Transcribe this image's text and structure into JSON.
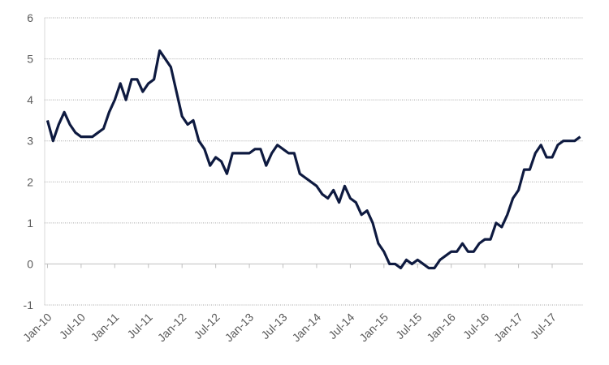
{
  "chart_data": {
    "type": "line",
    "categories": [
      "Jan-10",
      null,
      null,
      null,
      null,
      null,
      "Jul-10",
      null,
      null,
      null,
      null,
      null,
      "Jan-11",
      null,
      null,
      null,
      null,
      null,
      "Jul-11",
      null,
      null,
      null,
      null,
      null,
      "Jan-12",
      null,
      null,
      null,
      null,
      null,
      "Jul-12",
      null,
      null,
      null,
      null,
      null,
      "Jan-13",
      null,
      null,
      null,
      null,
      null,
      "Jul-13",
      null,
      null,
      null,
      null,
      null,
      "Jan-14",
      null,
      null,
      null,
      null,
      null,
      "Jul-14",
      null,
      null,
      null,
      null,
      null,
      "Jan-15",
      null,
      null,
      null,
      null,
      null,
      "Jul-15",
      null,
      null,
      null,
      null,
      null,
      "Jan-16",
      null,
      null,
      null,
      null,
      null,
      "Jul-16",
      null,
      null,
      null,
      null,
      null,
      "Jan-17",
      null,
      null,
      null,
      null,
      null,
      "Jul-17",
      null,
      null,
      null,
      null,
      null
    ],
    "series": [
      {
        "color": "#0e1a40",
        "values": [
          3.5,
          3.0,
          3.4,
          3.7,
          3.4,
          3.2,
          3.1,
          3.1,
          3.1,
          3.2,
          3.3,
          3.7,
          4.0,
          4.4,
          4.0,
          4.5,
          4.5,
          4.2,
          4.4,
          4.5,
          5.2,
          5.0,
          4.8,
          4.2,
          3.6,
          3.4,
          3.5,
          3.0,
          2.8,
          2.4,
          2.6,
          2.5,
          2.2,
          2.7,
          2.7,
          2.7,
          2.7,
          2.8,
          2.8,
          2.4,
          2.7,
          2.9,
          2.8,
          2.7,
          2.7,
          2.2,
          2.1,
          2.0,
          1.9,
          1.7,
          1.6,
          1.8,
          1.5,
          1.9,
          1.6,
          1.5,
          1.2,
          1.3,
          1.0,
          0.5,
          0.3,
          0.0,
          0.0,
          -0.1,
          0.1,
          0.0,
          0.1,
          0.0,
          -0.1,
          -0.1,
          0.1,
          0.2,
          0.3,
          0.3,
          0.5,
          0.3,
          0.3,
          0.5,
          0.6,
          0.6,
          1.0,
          0.9,
          1.2,
          1.6,
          1.8,
          2.3,
          2.3,
          2.7,
          2.9,
          2.6,
          2.6,
          2.9,
          3.0,
          3.0,
          3.0,
          3.1
        ]
      }
    ],
    "ylim": [
      -1,
      6
    ],
    "yticks": [
      -1,
      0,
      1,
      2,
      3,
      4,
      5,
      6
    ],
    "grid": true
  }
}
